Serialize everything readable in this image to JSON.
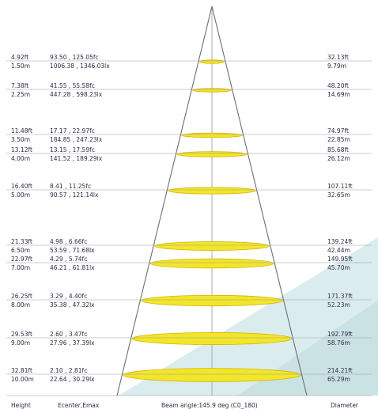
{
  "diagram": {
    "rows": [
      {
        "height_ft": "4.92ft",
        "height_m": "1.50m",
        "fc": "93.50 , 125.05fc",
        "lx": "1006.38 , 1346.03lx",
        "diameter_ft": "32.13ft",
        "diameter_m": "9.79m"
      },
      {
        "height_ft": "7.38ft",
        "height_m": "2.25m",
        "fc": "41.55 , 55.58fc",
        "lx": "447.28 , 598.23lx",
        "diameter_ft": "48.20ft",
        "diameter_m": "14.69m"
      },
      {
        "height_ft": "11.48ft",
        "height_m": "3.50m",
        "fc": "17.17 , 22.97fc",
        "lx": "184.85 , 247.23lx",
        "diameter_ft": "74.97ft",
        "diameter_m": "22.85m"
      },
      {
        "height_ft": "13.12ft",
        "height_m": "4.00m",
        "fc": "13.15 , 17.59fc",
        "lx": "141.52 , 189.29lx",
        "diameter_ft": "85.68ft",
        "diameter_m": "26.12m"
      },
      {
        "height_ft": "16.40ft",
        "height_m": "5.00m",
        "fc": "8.41 , 11.25fc",
        "lx": "90.57 , 121.14lx",
        "diameter_ft": "107.11ft",
        "diameter_m": "32.65m"
      },
      {
        "height_ft": "21.33ft",
        "height_m": "6.50m",
        "fc": "4.98 , 6.66fc",
        "lx": "53.59 , 71.68lx",
        "diameter_ft": "139.24ft",
        "diameter_m": "42.44m"
      },
      {
        "height_ft": "22.97ft",
        "height_m": "7.00m",
        "fc": "4.29 , 5.74fc",
        "lx": "46.21 , 61.81lx",
        "diameter_ft": "149.95ft",
        "diameter_m": "45.70m"
      },
      {
        "height_ft": "26.25ft",
        "height_m": "8.00m",
        "fc": "3.29 , 4.40fc",
        "lx": "35.38 , 47.32lx",
        "diameter_ft": "171.37ft",
        "diameter_m": "52.23m"
      },
      {
        "height_ft": "29.53ft",
        "height_m": "9.00m",
        "fc": "2.60 , 3.47fc",
        "lx": "27.96 , 37.39lx",
        "diameter_ft": "192.79ft",
        "diameter_m": "58.76m"
      },
      {
        "height_ft": "32.81ft",
        "height_m": "10.00m",
        "fc": "2.10 , 2.81fc",
        "lx": "22.64 , 30.29lx",
        "diameter_ft": "214.21ft",
        "diameter_m": "65.29m"
      }
    ],
    "footer": {
      "height": "Height",
      "ecenter": "Ecenter,Emax",
      "beam_angle": "Beam angle:145.9 deg (C0_180)",
      "diameter": "Diameter"
    },
    "colors": {
      "cone_line": "#6e6e6e",
      "rule_line": "#9a9a9a",
      "spot_fill": "#f2e62a",
      "spot_edge": "#d8b400",
      "text": "#2c2c44",
      "wedge": "#cfe6e8"
    }
  }
}
